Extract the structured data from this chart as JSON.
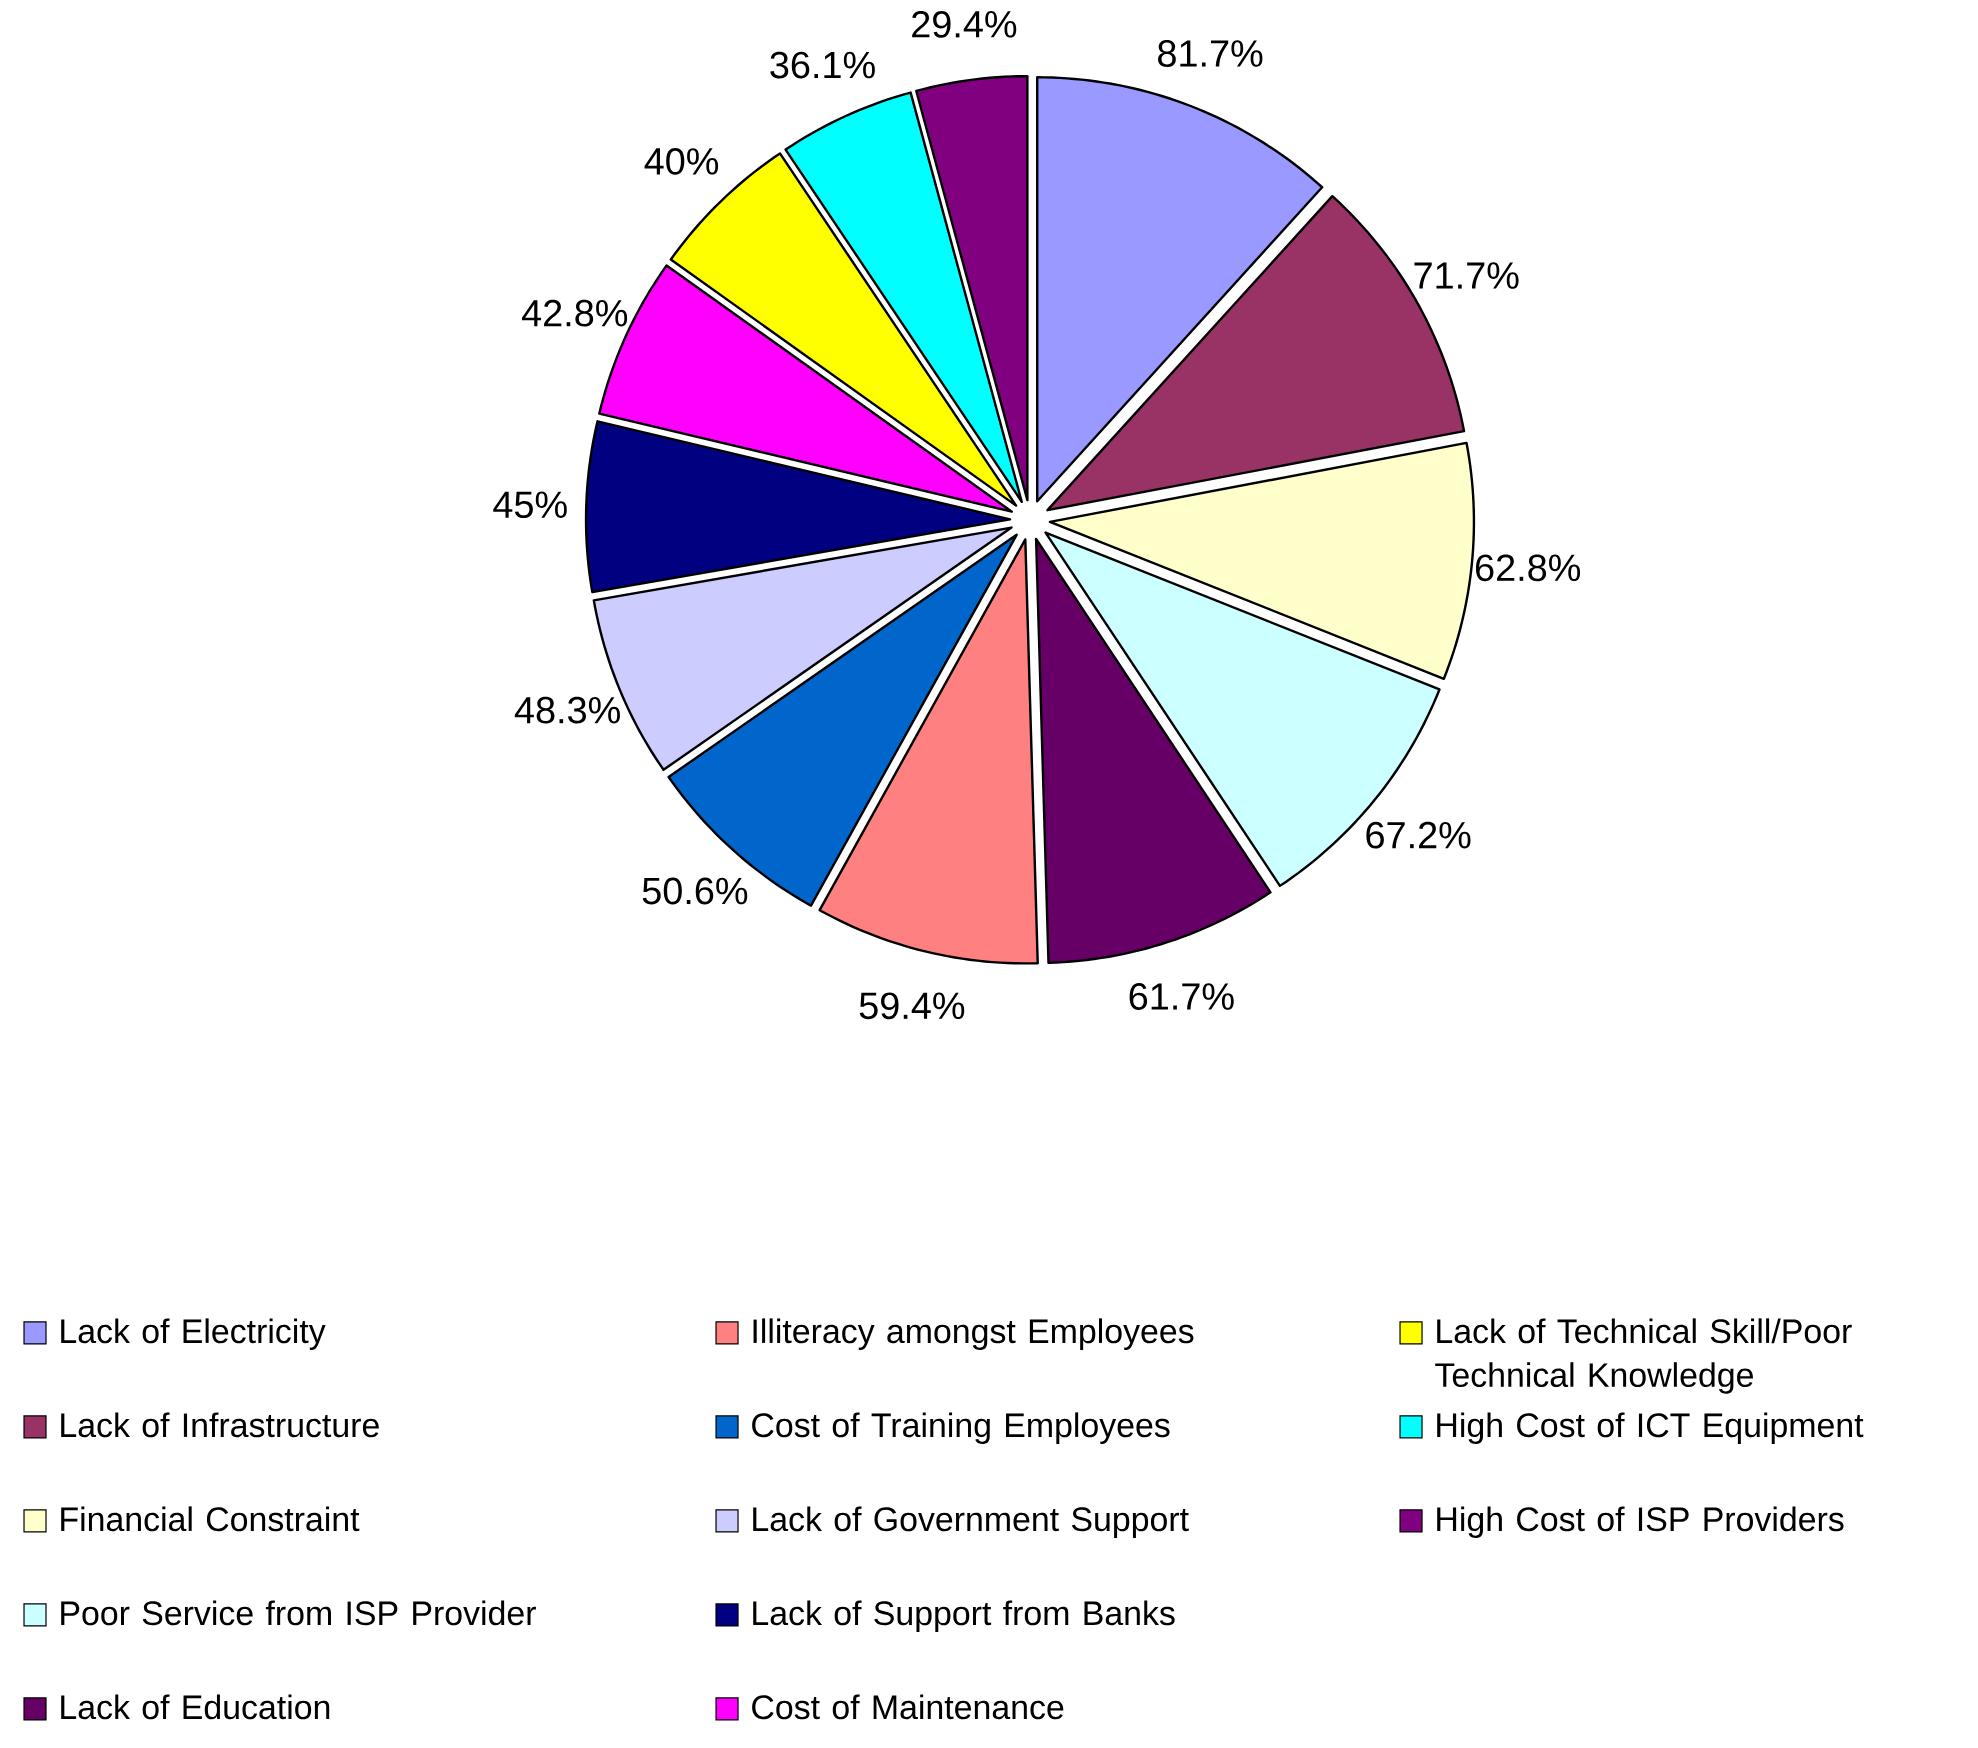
{
  "chart_data": {
    "type": "pie",
    "categories": [
      "Lack of Electricity",
      "Lack of Infrastructure",
      "Financial Constraint",
      "Poor Service from ISP Provider",
      "Lack of Education",
      "Illiteracy amongst Employees",
      "Cost of Training Employees",
      "Lack of Government Support",
      "Lack of Support from Banks",
      "Cost of Maintenance",
      "Lack of Technical Skill/Poor Technical Knowledge",
      "High Cost of ICT Equipment",
      "High Cost of ISP Providers"
    ],
    "values": [
      81.7,
      71.7,
      62.8,
      67.2,
      61.7,
      59.4,
      50.6,
      48.3,
      45,
      42.8,
      40,
      36.1,
      29.4
    ],
    "value_labels": [
      "81.7%",
      "71.7%",
      "62.8%",
      "67.2%",
      "61.7%",
      "59.4%",
      "50.6%",
      "48.3%",
      "45%",
      "42.8%",
      "40%",
      "36.1%",
      "29.4%"
    ],
    "colors": [
      "#9999ff",
      "#993366",
      "#ffffcc",
      "#ccffff",
      "#660066",
      "#ff8080",
      "#0066cc",
      "#ccccff",
      "#000080",
      "#ff00ff",
      "#ffff00",
      "#00ffff",
      "#800080"
    ],
    "legend": "bottom"
  }
}
